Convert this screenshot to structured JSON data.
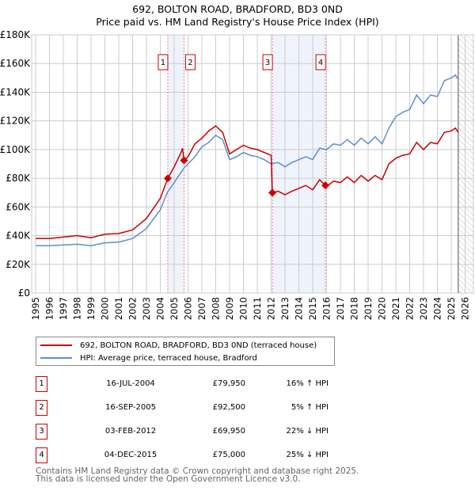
{
  "chart_data": {
    "type": "line",
    "title": "692, BOLTON ROAD, BRADFORD, BD3 0ND",
    "subtitle": "Price paid vs. HM Land Registry's House Price Index (HPI)",
    "ylim": [
      0,
      180000
    ],
    "xlim": [
      1995,
      2026
    ],
    "y_ticks": [
      "£0",
      "£20K",
      "£40K",
      "£60K",
      "£80K",
      "£100K",
      "£120K",
      "£140K",
      "£160K",
      "£180K"
    ],
    "x_ticks": [
      "1995",
      "1996",
      "1997",
      "1998",
      "1999",
      "2000",
      "2001",
      "2002",
      "2003",
      "2004",
      "2005",
      "2006",
      "2007",
      "2008",
      "2009",
      "2010",
      "2011",
      "2012",
      "2013",
      "2014",
      "2015",
      "2016",
      "2017",
      "2018",
      "2019",
      "2020",
      "2021",
      "2022",
      "2023",
      "2024",
      "2025",
      "2026"
    ],
    "grid": true,
    "series": [
      {
        "name": "692, BOLTON ROAD, BRADFORD, BD3 0ND (terraced house)",
        "color": "#cc0000",
        "x": [
          1995,
          1996,
          1997,
          1998,
          1999,
          2000,
          2001,
          2002,
          2003,
          2004,
          2004.54,
          2005,
          2005.5,
          2005.6,
          2005.71,
          2006,
          2006.5,
          2007,
          2007.5,
          2008,
          2008.5,
          2009,
          2009.5,
          2010,
          2010.5,
          2011,
          2011.5,
          2012,
          2012.09,
          2012.5,
          2013,
          2013.5,
          2014,
          2014.5,
          2015,
          2015.5,
          2015.92,
          2016,
          2016.5,
          2017,
          2017.5,
          2018,
          2018.5,
          2019,
          2019.5,
          2020,
          2020.5,
          2021,
          2021.5,
          2022,
          2022.5,
          2023,
          2023.5,
          2024,
          2024.5,
          2025,
          2025.3,
          2025.5
        ],
        "y": [
          38000,
          38000,
          39000,
          40000,
          38500,
          41000,
          41500,
          44000,
          52000,
          66000,
          79950,
          88000,
          98000,
          101000,
          92500,
          95000,
          104000,
          108000,
          113000,
          116500,
          112000,
          97000,
          100000,
          103000,
          101000,
          100000,
          98000,
          96000,
          69950,
          71000,
          68500,
          71000,
          73000,
          75000,
          72000,
          79000,
          75000,
          74000,
          78000,
          77000,
          81000,
          77000,
          82000,
          78000,
          82000,
          79000,
          90000,
          94000,
          96000,
          97000,
          105000,
          100000,
          105000,
          104000,
          112000,
          113000,
          115000,
          112000
        ]
      },
      {
        "name": "HPI: Average price, terraced house, Bradford",
        "color": "#5b8fd0",
        "x": [
          1995,
          1996,
          1997,
          1998,
          1999,
          2000,
          2001,
          2002,
          2003,
          2004,
          2004.5,
          2005,
          2005.7,
          2006,
          2006.5,
          2007,
          2007.5,
          2008,
          2008.5,
          2009,
          2009.5,
          2010,
          2010.5,
          2011,
          2011.5,
          2012,
          2012.5,
          2013,
          2013.5,
          2014,
          2014.5,
          2015,
          2015.5,
          2016,
          2016.5,
          2017,
          2017.5,
          2018,
          2018.5,
          2019,
          2019.5,
          2020,
          2020.5,
          2021,
          2021.5,
          2022,
          2022.5,
          2023,
          2023.5,
          2024,
          2024.5,
          2025,
          2025.3,
          2025.5
        ],
        "y": [
          33000,
          33000,
          33500,
          34000,
          33000,
          35000,
          35500,
          38000,
          45000,
          58000,
          70000,
          77000,
          87000,
          90000,
          95000,
          102000,
          105000,
          110000,
          107000,
          93000,
          95000,
          98000,
          96000,
          95000,
          93000,
          90000,
          91000,
          88000,
          91000,
          93000,
          95000,
          93000,
          101000,
          100000,
          104000,
          103000,
          107000,
          103000,
          108000,
          104000,
          109000,
          104000,
          115000,
          123000,
          126000,
          128000,
          138000,
          132000,
          138000,
          137000,
          148000,
          150000,
          152000,
          149000
        ]
      }
    ],
    "sales": [
      {
        "label": "1",
        "date": "16-JUL-2004",
        "x": 2004.54,
        "price": "£79,950",
        "value": 79950,
        "hpi": "16% ↑ HPI"
      },
      {
        "label": "2",
        "date": "16-SEP-2005",
        "x": 2005.71,
        "price": "£92,500",
        "value": 92500,
        "hpi": "5% ↑ HPI"
      },
      {
        "label": "3",
        "date": "03-FEB-2012",
        "x": 2012.09,
        "price": "£69,950",
        "value": 69950,
        "hpi": "22% ↓ HPI"
      },
      {
        "label": "4",
        "date": "04-DEC-2015",
        "x": 2015.92,
        "price": "£75,000",
        "value": 75000,
        "hpi": "25% ↓ HPI"
      }
    ],
    "shaded": [
      [
        2004.54,
        2005.71
      ],
      [
        2012.09,
        2015.92
      ]
    ],
    "forecast_start": 2025.5,
    "legend_position": "below"
  },
  "footer": {
    "line1": "Contains HM Land Registry data © Crown copyright and database right 2025.",
    "line2": "This data is licensed under the Open Government Licence v3.0."
  }
}
